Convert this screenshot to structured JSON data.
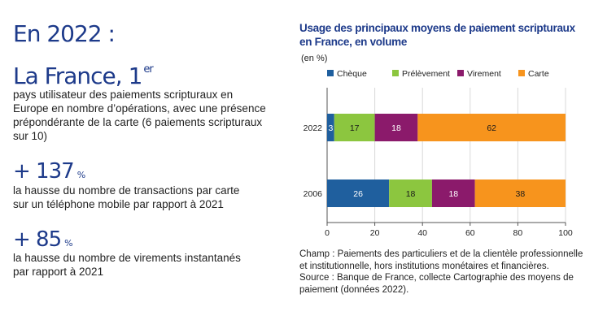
{
  "left": {
    "heading": "En 2022 :",
    "rank_main": "La France, 1",
    "rank_sup": "er",
    "rank_text": "pays utilisateur des paiements scripturaux en Europe en nombre d’opérations, avec une présence prépondérante de la carte (6 paiements scripturaux sur 10)",
    "stat1_value": "+ 137",
    "stat1_unit": "%",
    "stat1_text": "la hausse du nombre de transactions par carte sur un téléphone mobile par rapport à 2021",
    "stat2_value": "+ 85",
    "stat2_unit": "%",
    "stat2_text": "la hausse du nombre de virements instantanés par rapport à 2021"
  },
  "chart_data": {
    "type": "bar",
    "orientation": "horizontal",
    "stacked": true,
    "title": "Usage des principaux moyens de paiement scripturaux en France, en volume",
    "unit_label": "(en %)",
    "categories": [
      "2022",
      "2006"
    ],
    "series": [
      {
        "name": "Chèque",
        "color": "#1f5f9e",
        "values": [
          3,
          26
        ]
      },
      {
        "name": "Prélèvement",
        "color": "#8cc63f",
        "values": [
          17,
          18
        ]
      },
      {
        "name": "Virement",
        "color": "#8b1a6b",
        "values": [
          18,
          18
        ]
      },
      {
        "name": "Carte",
        "color": "#f7941d",
        "values": [
          62,
          38
        ]
      }
    ],
    "xlim": [
      0,
      100
    ],
    "xticks": [
      0,
      20,
      40,
      60,
      80,
      100
    ],
    "grid": "vertical",
    "legend_position": "top"
  },
  "note": {
    "champ": "Champ : Paiements des particuliers et de la clientèle professionnelle et institutionnelle, hors institutions monétaires et financières.",
    "source": "Source : Banque de France, collecte Cartographie des moyens de paiement (données 2022)."
  }
}
